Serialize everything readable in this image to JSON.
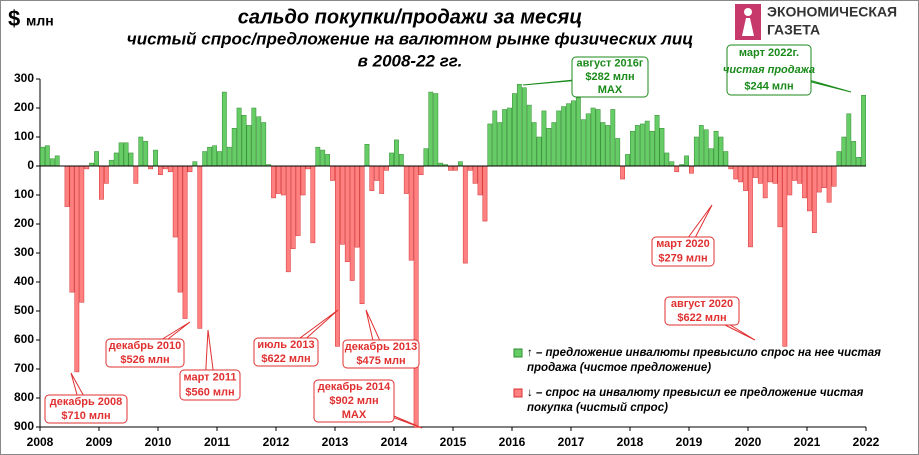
{
  "chart_data": {
    "type": "bar",
    "title": [
      "сальдо покупки/продажи за месяц",
      "чистый спрос/предложение на валютном рынке физических лиц",
      "в 2008-22 гг."
    ],
    "unit_symbol": "$",
    "unit": "млн",
    "logo": [
      "ЭКОНОМИЧЕСКАЯ",
      "ГАЗЕТА"
    ],
    "x": [
      2008,
      2008.083,
      2008.167,
      2008.25,
      2008.333,
      2008.417,
      2008.5,
      2008.583,
      2008.667,
      2008.75,
      2008.833,
      2008.917,
      2009,
      2009.083,
      2009.167,
      2009.25,
      2009.333,
      2009.417,
      2009.5,
      2009.583,
      2009.667,
      2009.75,
      2009.833,
      2009.917,
      2010,
      2010.083,
      2010.167,
      2010.25,
      2010.333,
      2010.417,
      2010.5,
      2010.583,
      2010.667,
      2010.75,
      2010.833,
      2010.917,
      2011,
      2011.083,
      2011.167,
      2011.25,
      2011.333,
      2011.417,
      2011.5,
      2011.583,
      2011.667,
      2011.75,
      2011.833,
      2011.917,
      2012,
      2012.083,
      2012.167,
      2012.25,
      2012.333,
      2012.417,
      2012.5,
      2012.583,
      2012.667,
      2012.75,
      2012.833,
      2012.917,
      2013,
      2013.083,
      2013.167,
      2013.25,
      2013.333,
      2013.417,
      2013.5,
      2013.583,
      2013.667,
      2013.75,
      2013.833,
      2013.917,
      2014,
      2014.083,
      2014.167,
      2014.25,
      2014.333,
      2014.417,
      2014.5,
      2014.583,
      2014.667,
      2014.75,
      2014.833,
      2014.917,
      2015,
      2015.083,
      2015.167,
      2015.25,
      2015.333,
      2015.417,
      2015.5,
      2015.583,
      2015.667,
      2015.75,
      2015.833,
      2015.917,
      2016,
      2016.083,
      2016.167,
      2016.25,
      2016.333,
      2016.417,
      2016.5,
      2016.583,
      2016.667,
      2016.75,
      2016.833,
      2016.917,
      2017,
      2017.083,
      2017.167,
      2017.25,
      2017.333,
      2017.417,
      2017.5,
      2017.583,
      2017.667,
      2017.75,
      2017.833,
      2017.917,
      2018,
      2018.083,
      2018.167,
      2018.25,
      2018.333,
      2018.417,
      2018.5,
      2018.583,
      2018.667,
      2018.75,
      2018.833,
      2018.917,
      2019,
      2019.083,
      2019.167,
      2019.25,
      2019.333,
      2019.417,
      2019.5,
      2019.583,
      2019.667,
      2019.75,
      2019.833,
      2019.917,
      2020,
      2020.083,
      2020.167,
      2020.25,
      2020.333,
      2020.417,
      2020.5,
      2020.583,
      2020.667,
      2020.75,
      2020.833,
      2020.917,
      2021,
      2021.083,
      2021.167,
      2021.25,
      2021.333,
      2021.417,
      2021.5,
      2021.583,
      2021.667,
      2021.75,
      2021.833,
      2021.917
    ],
    "bar_width": 0.083,
    "values": [
      65,
      70,
      25,
      35,
      0,
      -140,
      -435,
      -710,
      -470,
      -10,
      10,
      50,
      -115,
      -60,
      20,
      45,
      80,
      80,
      45,
      -60,
      100,
      85,
      -10,
      55,
      -30,
      -10,
      -20,
      -245,
      -435,
      -526,
      -20,
      15,
      -560,
      50,
      65,
      70,
      50,
      255,
      65,
      130,
      200,
      175,
      140,
      200,
      170,
      150,
      5,
      -110,
      -95,
      -100,
      -365,
      -285,
      -240,
      -100,
      -10,
      -265,
      65,
      55,
      40,
      -50,
      -622,
      -270,
      -330,
      -395,
      -280,
      -475,
      75,
      -85,
      -50,
      -95,
      -15,
      45,
      90,
      40,
      -95,
      -325,
      -902,
      -30,
      60,
      255,
      250,
      10,
      5,
      -15,
      -15,
      15,
      -335,
      -15,
      -60,
      -100,
      -190,
      145,
      190,
      150,
      195,
      200,
      250,
      282,
      270,
      210,
      150,
      100,
      190,
      130,
      150,
      190,
      205,
      215,
      225,
      235,
      160,
      180,
      200,
      195,
      150,
      140,
      195,
      95,
      -45,
      40,
      120,
      140,
      145,
      155,
      120,
      175,
      130,
      45,
      15,
      -20,
      5,
      35,
      -25,
      100,
      140,
      125,
      60,
      120,
      100,
      50,
      -10,
      -45,
      -55,
      -85,
      -279,
      -40,
      -60,
      -110,
      -55,
      -60,
      -210,
      -622,
      -100,
      -50,
      -60,
      -110,
      -155,
      -230,
      -90,
      -75,
      -125,
      -70,
      50,
      100,
      180,
      85,
      30,
      244
    ],
    "positive_color": "#66cc66",
    "negative_color": "#ff8080",
    "ylim": [
      -900,
      300
    ],
    "yticks": [
      300,
      200,
      100,
      0,
      {
        "value": -100,
        "label": "100"
      },
      {
        "value": -200,
        "label": "200"
      },
      {
        "value": -300,
        "label": "300"
      },
      {
        "value": -400,
        "label": "400"
      },
      {
        "value": -500,
        "label": "500"
      },
      {
        "value": -600,
        "label": "600"
      },
      {
        "value": -700,
        "label": "700"
      },
      {
        "value": -800,
        "label": "800"
      },
      {
        "value": -900,
        "label": "900"
      }
    ],
    "xlim": [
      2008,
      2022
    ],
    "xticks": [
      2008,
      2009,
      2010,
      2011,
      2012,
      2013,
      2014,
      2015,
      2016,
      2017,
      2018,
      2019,
      2020,
      2021,
      2022
    ],
    "grid": false,
    "annotations": [
      {
        "lines": [
          "август 2016г",
          "$282 млн",
          "MAX"
        ],
        "color": "green"
      },
      {
        "lines": [
          "март  2022г.",
          "чистая продажа",
          "$244  млн"
        ],
        "color": "green"
      },
      {
        "lines": [
          "декабрь 2010",
          "$526 млн"
        ],
        "color": "red"
      },
      {
        "lines": [
          "март 2011",
          "$560 млн"
        ],
        "color": "red"
      },
      {
        "lines": [
          "декабрь 2008",
          "$710 млн"
        ],
        "color": "red"
      },
      {
        "lines": [
          "июль 2013",
          "$622 млн"
        ],
        "color": "red"
      },
      {
        "lines": [
          "декабрь 2013",
          "$475 млн"
        ],
        "color": "red"
      },
      {
        "lines": [
          "декабрь 2014",
          "$902 млн",
          "MAX"
        ],
        "color": "red"
      },
      {
        "lines": [
          "март 2020",
          "$279 млн"
        ],
        "color": "red"
      },
      {
        "lines": [
          "август 2020",
          "$622 млн"
        ],
        "color": "red"
      }
    ],
    "legend": [
      {
        "lines": [
          "↑ – предложение инвалюты превысило спрос на нее чистая",
          "продажа (чистое предложение)"
        ]
      },
      {
        "lines": [
          "↓ – спрос на инвалюту превысил ее предложение чистая",
          "покупка (чистый спрос)"
        ]
      }
    ]
  }
}
